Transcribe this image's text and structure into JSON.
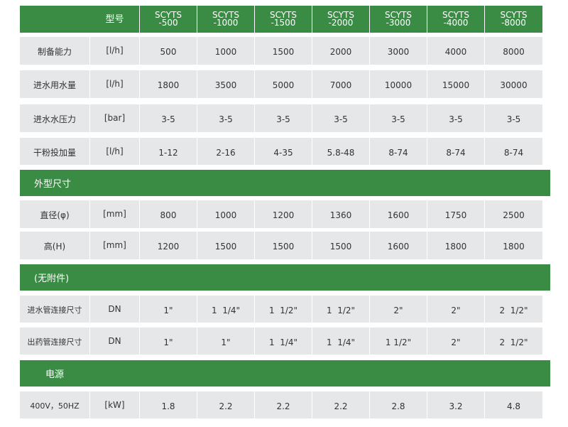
{
  "header": {
    "label": "型号",
    "models": [
      [
        "SCYTS",
        "-500"
      ],
      [
        "SCYTS",
        "-1000"
      ],
      [
        "SCYTS",
        "-1500"
      ],
      [
        "SCYTS",
        "-2000"
      ],
      [
        "SCYTS",
        "-3000"
      ],
      [
        "SCYTS",
        "-4000"
      ],
      [
        "SCYTS",
        "-8000"
      ]
    ]
  },
  "sections": [
    {
      "title": "",
      "rows": [
        {
          "name": "制备能力",
          "unit": "[l/h]",
          "values": [
            "500",
            "1000",
            "1500",
            "2000",
            "3000",
            "4000",
            "8000"
          ]
        },
        {
          "name": "进水用水量",
          "unit": "[l/h]",
          "values": [
            "1800",
            "3500",
            "5000",
            "7000",
            "10000",
            "15000",
            "30000"
          ]
        },
        {
          "name": "进水水压力",
          "unit": "[bar]",
          "values": [
            "3-5",
            "3-5",
            "3-5",
            "3-5",
            "3-5",
            "3-5",
            "3-5"
          ]
        },
        {
          "name": "干粉投加量",
          "unit": "[l/h]",
          "values": [
            "1-12",
            "2-16",
            "4-35",
            "5.8-48",
            "8-74",
            "8-74",
            "8-74"
          ]
        }
      ]
    },
    {
      "title": "外型尺寸",
      "rows": [
        {
          "name": "直径(φ)",
          "unit": "[mm]",
          "values": [
            "800",
            "1000",
            "1200",
            "1360",
            "1600",
            "1750",
            "2500"
          ]
        },
        {
          "name": "高(H)",
          "unit": "[mm]",
          "values": [
            "1200",
            "1500",
            "1500",
            "1500",
            "1600",
            "1800",
            "1800"
          ]
        }
      ]
    },
    {
      "title": "(无附件)",
      "rows": [
        {
          "name": "进水管连接尺寸",
          "unit": "DN",
          "values": [
            "1\"",
            "1  1/4\"",
            "1  1/2\"",
            "1  1/2\"",
            "2\"",
            "2\"",
            "2  1/2\""
          ]
        },
        {
          "name": "出药管连接尺寸",
          "unit": "DN",
          "values": [
            "1\"",
            "1\"",
            "1  1/4\"",
            "1  1/4\"",
            "1 1/2\"",
            "2\"",
            "2  1/2\""
          ]
        }
      ]
    },
    {
      "title": "电源",
      "rows": [
        {
          "name": "400V，50HZ",
          "unit": "[kW]",
          "values": [
            "1.8",
            "2.2",
            "2.2",
            "2.2",
            "2.8",
            "3.2",
            "4.8"
          ]
        }
      ]
    }
  ],
  "colors": {
    "green": "#3a8c45",
    "cell": "#e6e7e9",
    "text": "#333333"
  }
}
